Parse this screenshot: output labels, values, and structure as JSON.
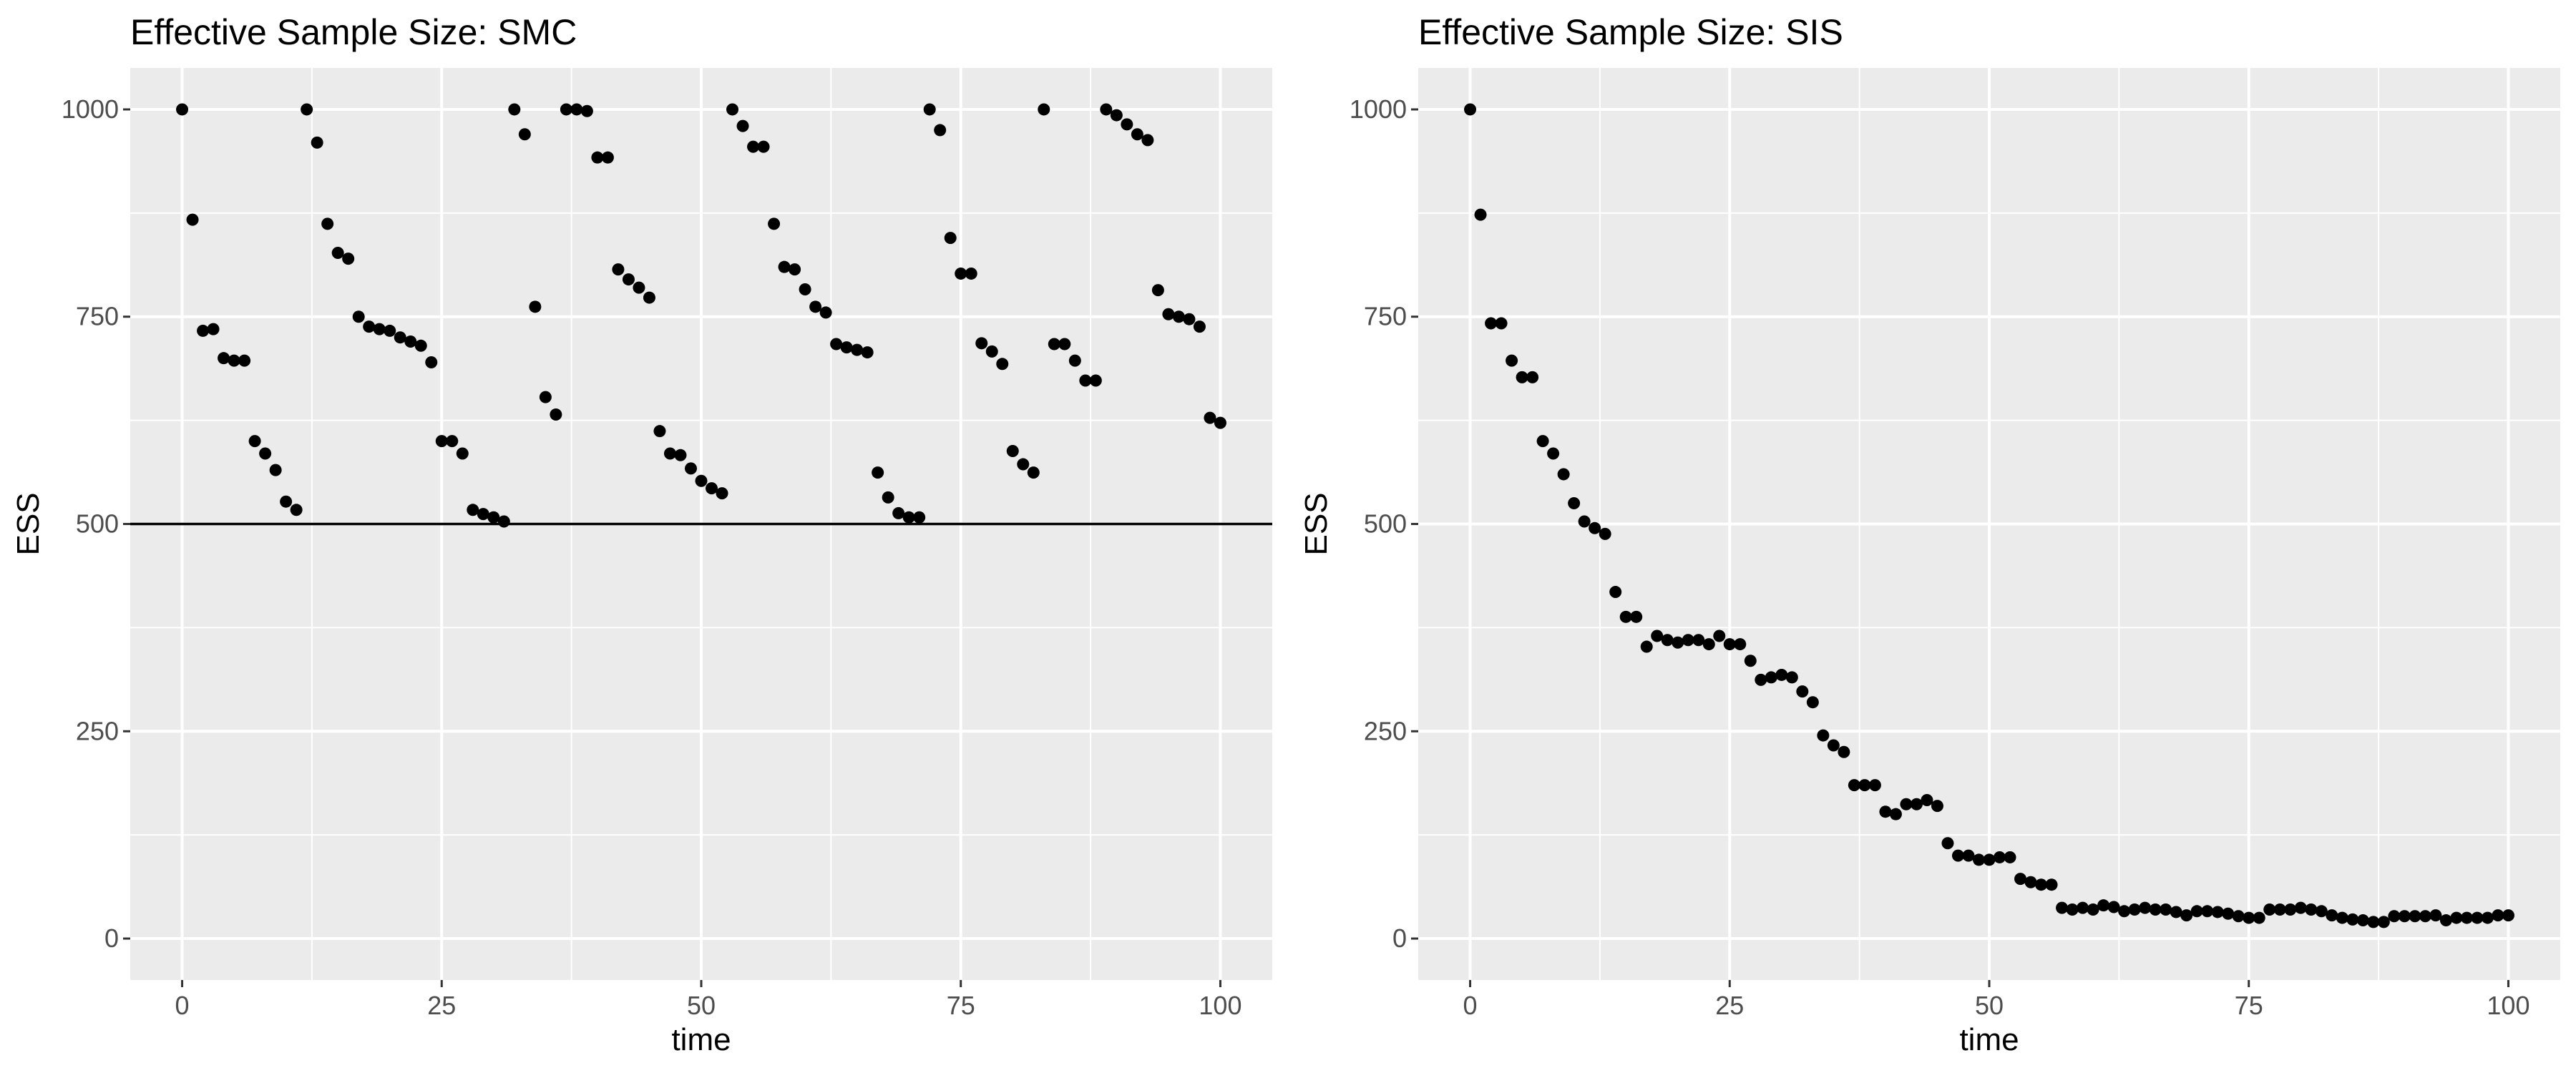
{
  "chart_data": [
    {
      "type": "scatter",
      "title": "Effective Sample Size: SMC",
      "xlabel": "time",
      "ylabel": "ESS",
      "xlim": [
        -5,
        105
      ],
      "ylim": [
        -50,
        1050
      ],
      "x_ticks": [
        0,
        25,
        50,
        75,
        100
      ],
      "y_ticks": [
        0,
        250,
        500,
        750,
        1000
      ],
      "grid": true,
      "reference_line": {
        "y": 500
      },
      "x": [
        0,
        1,
        2,
        3,
        4,
        5,
        6,
        7,
        8,
        9,
        10,
        11,
        12,
        13,
        14,
        15,
        16,
        17,
        18,
        19,
        20,
        21,
        22,
        23,
        24,
        25,
        26,
        27,
        28,
        29,
        30,
        31,
        32,
        33,
        34,
        35,
        36,
        37,
        38,
        39,
        40,
        41,
        42,
        43,
        44,
        45,
        46,
        47,
        48,
        49,
        50,
        51,
        52,
        53,
        54,
        55,
        56,
        57,
        58,
        59,
        60,
        61,
        62,
        63,
        64,
        65,
        66,
        67,
        68,
        69,
        70,
        71,
        72,
        73,
        74,
        75,
        76,
        77,
        78,
        79,
        80,
        81,
        82,
        83,
        84,
        85,
        86,
        87,
        88,
        89,
        90,
        91,
        92,
        93,
        94,
        95,
        96,
        97,
        98,
        99,
        100
      ],
      "y": [
        1000,
        867,
        733,
        735,
        700,
        697,
        697,
        600,
        585,
        565,
        527,
        517,
        1000,
        960,
        862,
        827,
        820,
        750,
        738,
        735,
        733,
        725,
        720,
        715,
        695,
        600,
        600,
        585,
        517,
        512,
        508,
        503,
        1000,
        970,
        762,
        653,
        632,
        1000,
        1000,
        998,
        942,
        942,
        807,
        795,
        785,
        773,
        612,
        585,
        583,
        567,
        552,
        543,
        537,
        1000,
        980,
        955,
        955,
        862,
        810,
        807,
        783,
        762,
        755,
        717,
        713,
        710,
        707,
        562,
        532,
        513,
        508,
        508,
        1000,
        975,
        845,
        802,
        802,
        718,
        708,
        693,
        588,
        572,
        562,
        1000,
        717,
        717,
        697,
        673,
        673,
        1000,
        993,
        982,
        970,
        963,
        782,
        753,
        750,
        747,
        738,
        628,
        622
      ]
    },
    {
      "type": "scatter",
      "title": "Effective Sample Size: SIS",
      "xlabel": "time",
      "ylabel": "ESS",
      "xlim": [
        -5,
        105
      ],
      "ylim": [
        -50,
        1050
      ],
      "x_ticks": [
        0,
        25,
        50,
        75,
        100
      ],
      "y_ticks": [
        0,
        250,
        500,
        750,
        1000
      ],
      "grid": true,
      "x": [
        0,
        1,
        2,
        3,
        4,
        5,
        6,
        7,
        8,
        9,
        10,
        11,
        12,
        13,
        14,
        15,
        16,
        17,
        18,
        19,
        20,
        21,
        22,
        23,
        24,
        25,
        26,
        27,
        28,
        29,
        30,
        31,
        32,
        33,
        34,
        35,
        36,
        37,
        38,
        39,
        40,
        41,
        42,
        43,
        44,
        45,
        46,
        47,
        48,
        49,
        50,
        51,
        52,
        53,
        54,
        55,
        56,
        57,
        58,
        59,
        60,
        61,
        62,
        63,
        64,
        65,
        66,
        67,
        68,
        69,
        70,
        71,
        72,
        73,
        74,
        75,
        76,
        77,
        78,
        79,
        80,
        81,
        82,
        83,
        84,
        85,
        86,
        87,
        88,
        89,
        90,
        91,
        92,
        93,
        94,
        95,
        96,
        97,
        98,
        99,
        100
      ],
      "y": [
        1000,
        873,
        742,
        742,
        697,
        677,
        677,
        600,
        585,
        560,
        525,
        503,
        495,
        488,
        418,
        388,
        388,
        352,
        365,
        360,
        357,
        360,
        360,
        355,
        365,
        355,
        355,
        335,
        312,
        315,
        318,
        315,
        298,
        285,
        245,
        233,
        225,
        185,
        185,
        185,
        153,
        150,
        162,
        162,
        167,
        160,
        115,
        100,
        100,
        95,
        95,
        98,
        98,
        72,
        68,
        65,
        65,
        37,
        35,
        37,
        35,
        40,
        38,
        33,
        35,
        37,
        35,
        35,
        32,
        28,
        33,
        33,
        32,
        30,
        27,
        25,
        25,
        35,
        35,
        35,
        37,
        35,
        33,
        28,
        25,
        23,
        22,
        20,
        20,
        27,
        27,
        27,
        27,
        28,
        22,
        25,
        25,
        25,
        25,
        28,
        28
      ]
    }
  ]
}
